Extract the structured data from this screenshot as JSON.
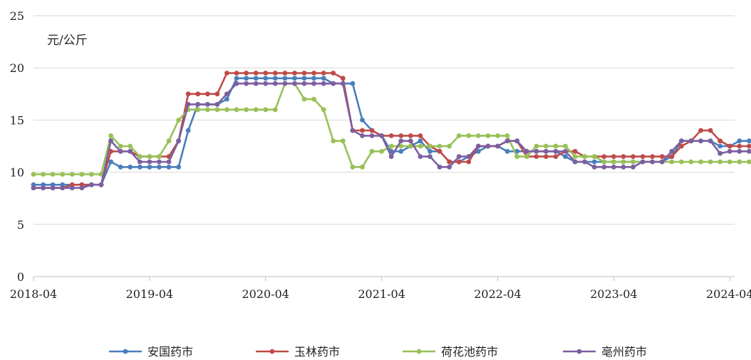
{
  "chart_data": {
    "type": "line",
    "unit_label": "元/公斤",
    "ylim": [
      0,
      25
    ],
    "yticks": [
      0,
      5,
      10,
      15,
      20,
      25
    ],
    "x_start": "2018-04",
    "x_end": "2024-04",
    "xticks": [
      "2018-04",
      "2019-04",
      "2020-04",
      "2021-04",
      "2022-04",
      "2023-04",
      "2024-04"
    ],
    "grid": "horizontal",
    "legend_position": "bottom",
    "series": [
      {
        "name": "安国药市",
        "color": "#4a7ebb",
        "values": [
          8.8,
          8.8,
          8.8,
          8.8,
          8.8,
          8.8,
          8.8,
          8.8,
          11,
          10.5,
          10.5,
          10.5,
          10.5,
          10.5,
          10.5,
          10.5,
          14,
          16.5,
          16.5,
          16.5,
          17,
          19,
          19,
          19,
          19,
          19,
          19,
          19,
          19,
          19,
          19,
          18.5,
          18.5,
          18.5,
          15,
          14,
          13.5,
          12,
          12,
          12.5,
          13,
          12,
          12,
          11,
          11,
          11.5,
          12,
          12.5,
          12.5,
          12,
          12,
          12,
          12,
          12,
          12,
          11.5,
          11,
          11,
          11,
          11,
          11,
          11,
          11,
          11,
          11,
          11,
          11.5,
          13,
          13,
          13,
          13,
          12.5,
          12.5,
          13,
          13,
          13,
          12,
          12,
          12,
          12,
          12
        ]
      },
      {
        "name": "玉林药市",
        "color": "#be4b48",
        "values": [
          8.5,
          8.5,
          8.5,
          8.5,
          8.8,
          8.8,
          8.8,
          8.8,
          12,
          12,
          12,
          11.5,
          11.5,
          11.5,
          11.5,
          13,
          17.5,
          17.5,
          17.5,
          17.5,
          19.5,
          19.5,
          19.5,
          19.5,
          19.5,
          19.5,
          19.5,
          19.5,
          19.5,
          19.5,
          19.5,
          19.5,
          19,
          14,
          14,
          14,
          13.5,
          13.5,
          13.5,
          13.5,
          13.5,
          12.5,
          12,
          11,
          11,
          11,
          12.5,
          12.5,
          12.5,
          13,
          13,
          11.5,
          11.5,
          11.5,
          11.5,
          12,
          12,
          11.5,
          11.5,
          11.5,
          11.5,
          11.5,
          11.5,
          11.5,
          11.5,
          11.5,
          11.5,
          12.5,
          13,
          14,
          14,
          13,
          12.5,
          12.5,
          12.5,
          12.5,
          12.5,
          12.5,
          12.5,
          12.5,
          12.5
        ]
      },
      {
        "name": "荷花池药市",
        "color": "#98c157",
        "values": [
          9.8,
          9.8,
          9.8,
          9.8,
          9.8,
          9.8,
          9.8,
          9.8,
          13.5,
          12.5,
          12.5,
          11.5,
          11.5,
          11.5,
          13,
          15,
          16,
          16,
          16,
          16,
          16,
          16,
          16,
          16,
          16,
          16,
          18.5,
          18.5,
          17,
          17,
          16,
          13,
          13,
          10.5,
          10.5,
          12,
          12,
          12.5,
          12.5,
          12.5,
          12.5,
          12.5,
          12.5,
          12.5,
          13.5,
          13.5,
          13.5,
          13.5,
          13.5,
          13.5,
          11.5,
          11.5,
          12.5,
          12.5,
          12.5,
          12.5,
          11.5,
          11.5,
          11.5,
          11,
          11,
          11,
          11,
          11,
          11,
          11,
          11,
          11,
          11,
          11,
          11,
          11,
          11,
          11,
          11,
          11,
          12,
          12,
          12,
          12,
          12
        ]
      },
      {
        "name": "亳州药市",
        "color": "#7d5fa0",
        "values": [
          8.5,
          8.5,
          8.5,
          8.5,
          8.5,
          8.5,
          8.8,
          8.8,
          13,
          12,
          12,
          11,
          11,
          11,
          11,
          13,
          16.5,
          16.5,
          16.5,
          16.5,
          17.5,
          18.5,
          18.5,
          18.5,
          18.5,
          18.5,
          18.5,
          18.5,
          18.5,
          18.5,
          18.5,
          18.5,
          18.5,
          14,
          13.5,
          13.5,
          13.5,
          11.5,
          13,
          13,
          11.5,
          11.5,
          10.5,
          10.5,
          11.5,
          11.5,
          12.5,
          12.5,
          12.5,
          13,
          13,
          12,
          12,
          12,
          12,
          12,
          11,
          11,
          10.5,
          10.5,
          10.5,
          10.5,
          10.5,
          11,
          11,
          11,
          12,
          13,
          13,
          13,
          13,
          11.8,
          12,
          12,
          12,
          12,
          12,
          12,
          12,
          12,
          12
        ]
      }
    ]
  }
}
